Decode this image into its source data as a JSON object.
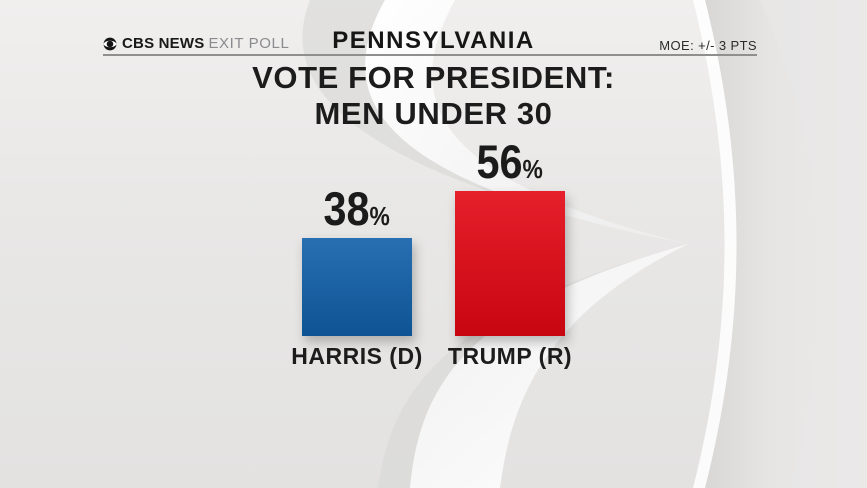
{
  "header": {
    "brand": {
      "network": "CBS NEWS",
      "program": "EXIT POLL"
    },
    "location": "PENNSYLVANIA",
    "moe": "MOE: +/- 3 PTS"
  },
  "title": {
    "line1": "VOTE FOR PRESIDENT:",
    "line2": "MEN UNDER 30"
  },
  "chart_data": {
    "type": "bar",
    "title": "VOTE FOR PRESIDENT: MEN UNDER 30",
    "location": "PENNSYLVANIA",
    "margin_of_error": "+/- 3 PTS",
    "categories": [
      "HARRIS (D)",
      "TRUMP (R)"
    ],
    "values": [
      38,
      56
    ],
    "unit": "%",
    "value_labels": [
      "38%",
      "56%"
    ],
    "series_colors": [
      "#0f5fa9",
      "#e30613"
    ],
    "ylim": [
      0,
      100
    ],
    "grid": false,
    "legend": "none",
    "axes": "hidden"
  },
  "colors": {
    "background_gray": "#e8e7e6",
    "harris_blue": "#0f5fa9",
    "trump_red": "#e30613",
    "text_dark": "#1c1c1c",
    "rule_gray": "#8f8f8f",
    "brand_gray": "#8b8a8e"
  }
}
